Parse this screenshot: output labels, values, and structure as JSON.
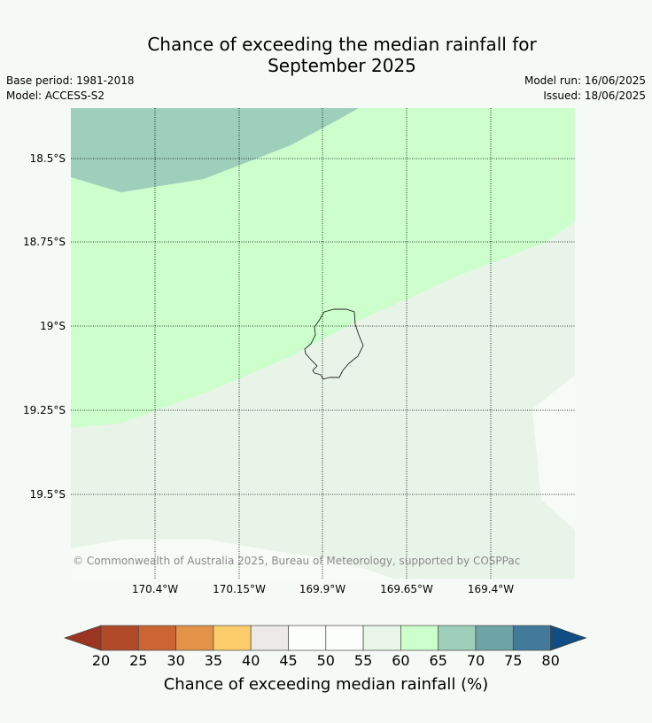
{
  "title": {
    "line1": "Chance of exceeding the median rainfall for",
    "line2": "September 2025"
  },
  "meta": {
    "base_period": "Base period: 1981-2018",
    "model": "Model: ACCESS-S2",
    "model_run": "Model run: 16/06/2025",
    "issued": "Issued: 18/06/2025"
  },
  "map": {
    "latitude_labels": [
      "18.5°S",
      "18.75°S",
      "19°S",
      "19.25°S",
      "19.5°S"
    ],
    "longitude_labels": [
      "170.4°W",
      "170.15°W",
      "169.9°W",
      "169.65°W",
      "169.4°W"
    ],
    "copyright": "© Commonwealth of Australia 2025, Bureau of Meteorology, supported by COSPPac",
    "regions": [
      {
        "band": "65-70",
        "color": "#9ecfbb"
      },
      {
        "band": "60-65",
        "color": "#ccffcc"
      },
      {
        "band": "55-60",
        "color": "#e9f4e8"
      },
      {
        "band": "50-55",
        "color": "#f6fbf6"
      }
    ]
  },
  "colorbar": {
    "ticks": [
      "20",
      "25",
      "30",
      "35",
      "40",
      "45",
      "50",
      "55",
      "60",
      "65",
      "70",
      "75",
      "80"
    ],
    "colors": [
      "#b14a29",
      "#cb6534",
      "#e29347",
      "#fdcc6a",
      "#ebeae6",
      "#fbfefb",
      "#fbfefb",
      "#e9f5e8",
      "#ccffcc",
      "#9ecfbb",
      "#6fa4a7",
      "#437a9b"
    ],
    "under_color": "#9c3422",
    "over_color": "#114c82",
    "label": "Chance of exceeding median rainfall (%)"
  }
}
